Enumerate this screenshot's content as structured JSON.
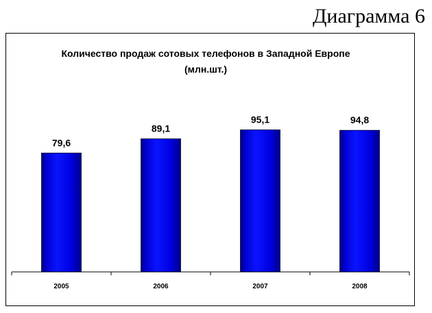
{
  "page": {
    "diagram_label": "Диаграмма 6"
  },
  "colors": {
    "bar_fill": "#0000e6",
    "bar_shade": "#00008a",
    "axis": "#000000"
  },
  "chart_data": {
    "type": "bar",
    "title": "Количество продаж сотовых телефонов в Западной Европе (млн.шт.)",
    "categories": [
      "2005",
      "2006",
      "2007",
      "2008"
    ],
    "values": [
      79.6,
      89.1,
      95.1,
      94.8
    ],
    "value_labels": [
      "79,6",
      "89,1",
      "95,1",
      "94,8"
    ],
    "xlabel": "",
    "ylabel": "",
    "ylim": [
      0,
      127
    ],
    "grid": false,
    "legend": "none"
  }
}
